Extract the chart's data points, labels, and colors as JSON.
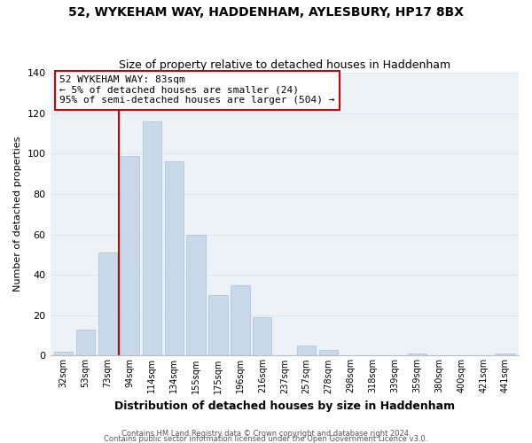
{
  "title": "52, WYKEHAM WAY, HADDENHAM, AYLESBURY, HP17 8BX",
  "subtitle": "Size of property relative to detached houses in Haddenham",
  "xlabel": "Distribution of detached houses by size in Haddenham",
  "ylabel": "Number of detached properties",
  "bar_labels": [
    "32sqm",
    "53sqm",
    "73sqm",
    "94sqm",
    "114sqm",
    "134sqm",
    "155sqm",
    "175sqm",
    "196sqm",
    "216sqm",
    "237sqm",
    "257sqm",
    "278sqm",
    "298sqm",
    "318sqm",
    "339sqm",
    "359sqm",
    "380sqm",
    "400sqm",
    "421sqm",
    "441sqm"
  ],
  "bar_values": [
    2,
    13,
    51,
    99,
    116,
    96,
    60,
    30,
    35,
    19,
    0,
    5,
    3,
    0,
    0,
    0,
    1,
    0,
    0,
    0,
    1
  ],
  "bar_color": "#c8d9ea",
  "bar_edge_color": "#a8c0d6",
  "vline_color": "#cc0000",
  "ylim": [
    0,
    140
  ],
  "yticks": [
    0,
    20,
    40,
    60,
    80,
    100,
    120,
    140
  ],
  "annotation_title": "52 WYKEHAM WAY: 83sqm",
  "annotation_line1": "← 5% of detached houses are smaller (24)",
  "annotation_line2": "95% of semi-detached houses are larger (504) →",
  "annotation_box_color": "#ffffff",
  "annotation_border_color": "#cc0000",
  "footer_line1": "Contains HM Land Registry data © Crown copyright and database right 2024.",
  "footer_line2": "Contains public sector information licensed under the Open Government Licence v3.0.",
  "grid_color": "#dde8f0",
  "background_color": "#edf2f7"
}
